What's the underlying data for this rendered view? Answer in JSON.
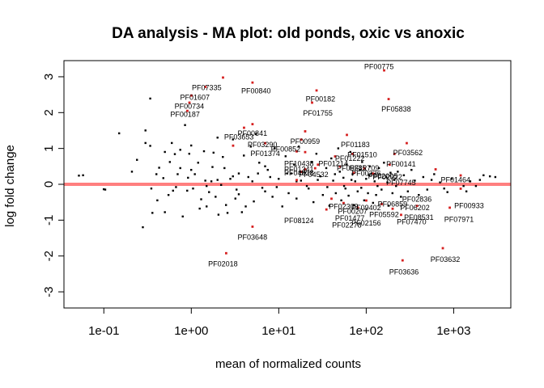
{
  "chart_data": {
    "type": "scatter",
    "title": "DA analysis - MA plot: old ponds, oxic vs anoxic",
    "xlabel": "mean of normalized counts",
    "ylabel": "log fold change",
    "x_scale": "log10",
    "xlim": [
      0.035,
      4500
    ],
    "ylim": [
      -3.45,
      3.45
    ],
    "x_ticks": [
      {
        "value": 0.1,
        "label": "1e-01"
      },
      {
        "value": 1,
        "label": "1e+00"
      },
      {
        "value": 10,
        "label": "1e+01"
      },
      {
        "value": 100,
        "label": "1e+02"
      },
      {
        "value": 1000,
        "label": "1e+03"
      }
    ],
    "y_ticks": [
      {
        "value": -3,
        "label": "-3"
      },
      {
        "value": -2,
        "label": "-2"
      },
      {
        "value": -1,
        "label": "-1"
      },
      {
        "value": 0,
        "label": "0"
      },
      {
        "value": 1,
        "label": "1"
      },
      {
        "value": 2,
        "label": "2"
      },
      {
        "value": 3,
        "label": "3"
      }
    ],
    "reference_line": {
      "y": 0,
      "color": "#ff7f7f"
    },
    "grid": false,
    "series": [
      {
        "color": "#000000",
        "points": [
          [
            0.052,
            0.24
          ],
          [
            0.058,
            0.25
          ],
          [
            0.1,
            -0.14
          ],
          [
            0.104,
            -0.15
          ],
          [
            0.15,
            1.42
          ],
          [
            0.21,
            0.35
          ],
          [
            0.24,
            0.68
          ],
          [
            0.28,
            -1.2
          ],
          [
            0.3,
            1.5
          ],
          [
            0.3,
            1.15
          ],
          [
            0.34,
            2.39
          ],
          [
            0.34,
            1.07
          ],
          [
            0.35,
            -0.12
          ],
          [
            0.36,
            -0.8
          ],
          [
            0.4,
            0.28
          ],
          [
            0.41,
            -0.45
          ],
          [
            0.43,
            0.46
          ],
          [
            0.48,
            0.17
          ],
          [
            0.5,
            -0.78
          ],
          [
            0.5,
            0.9
          ],
          [
            0.55,
            -0.3
          ],
          [
            0.57,
            0.62
          ],
          [
            0.6,
            1.15
          ],
          [
            0.62,
            -0.18
          ],
          [
            0.65,
            0.84
          ],
          [
            0.67,
            -0.08
          ],
          [
            0.7,
            0.28
          ],
          [
            0.75,
            0.45
          ],
          [
            0.75,
            0.96
          ],
          [
            0.8,
            -0.9
          ],
          [
            0.85,
            1.65
          ],
          [
            0.9,
            -0.18
          ],
          [
            0.92,
            0.18
          ],
          [
            0.95,
            0.85
          ],
          [
            1.0,
            1.08
          ],
          [
            1.05,
            -0.12
          ],
          [
            1.1,
            0.28
          ],
          [
            1.2,
            0.6
          ],
          [
            1.25,
            -0.68
          ],
          [
            1.3,
            -0.42
          ],
          [
            1.4,
            0.92
          ],
          [
            1.45,
            0.1
          ],
          [
            1.5,
            -0.62
          ],
          [
            1.6,
            -0.22
          ],
          [
            1.7,
            0.08
          ],
          [
            1.75,
            0.48
          ],
          [
            1.8,
            0.88
          ],
          [
            1.9,
            -0.35
          ],
          [
            2.0,
            1.3
          ],
          [
            2.05,
            -0.85
          ],
          [
            2.2,
            -0.02
          ],
          [
            2.3,
            0.76
          ],
          [
            2.4,
            0.45
          ],
          [
            2.5,
            -0.58
          ],
          [
            2.6,
            -0.8
          ],
          [
            2.8,
            0.15
          ],
          [
            3.0,
            0.22
          ],
          [
            3.0,
            1.25
          ],
          [
            3.2,
            -0.4
          ],
          [
            3.3,
            -0.15
          ],
          [
            3.5,
            0.3
          ],
          [
            3.8,
            -0.78
          ],
          [
            4.0,
            0.8
          ],
          [
            4.2,
            -0.62
          ],
          [
            4.5,
            0.2
          ],
          [
            4.8,
            1.05
          ],
          [
            5.2,
            -0.48
          ],
          [
            5.5,
            1.4
          ],
          [
            5.8,
            0.3
          ],
          [
            6.0,
            0.6
          ],
          [
            6.5,
            -0.1
          ],
          [
            7.0,
            -0.2
          ],
          [
            7.5,
            0.4
          ],
          [
            8.0,
            0.2
          ],
          [
            8.5,
            -0.35
          ],
          [
            9.0,
            1.0
          ],
          [
            10.0,
            0.15
          ],
          [
            11.0,
            -0.62
          ],
          [
            12.0,
            0.78
          ],
          [
            13.0,
            -0.25
          ],
          [
            14.0,
            0.3
          ],
          [
            15.0,
            0.55
          ],
          [
            16.0,
            -0.4
          ],
          [
            17.0,
            1.05
          ],
          [
            18.0,
            0.1
          ],
          [
            20.0,
            0.32
          ],
          [
            22.0,
            -0.12
          ],
          [
            24.0,
            0.62
          ],
          [
            25.0,
            -0.5
          ],
          [
            27.0,
            0.85
          ],
          [
            30.0,
            0.22
          ],
          [
            32.0,
            -0.3
          ],
          [
            35.0,
            0.45
          ],
          [
            38.0,
            -0.6
          ],
          [
            40.0,
            0.72
          ],
          [
            42.0,
            0.1
          ],
          [
            45.0,
            -0.25
          ],
          [
            48.0,
            1.0
          ],
          [
            50.0,
            0.35
          ],
          [
            52.0,
            -0.45
          ],
          [
            55.0,
            0.18
          ],
          [
            58.0,
            -0.12
          ],
          [
            60.0,
            0.55
          ],
          [
            63.0,
            -0.32
          ],
          [
            66.0,
            0.9
          ],
          [
            70.0,
            0.28
          ],
          [
            72.0,
            -0.58
          ],
          [
            75.0,
            0.08
          ],
          [
            80.0,
            -0.2
          ],
          [
            85.0,
            0.4
          ],
          [
            90.0,
            0.62
          ],
          [
            95.0,
            -0.45
          ],
          [
            100.0,
            0.15
          ],
          [
            105.0,
            -0.25
          ],
          [
            110.0,
            0.5
          ],
          [
            115.0,
            0.3
          ],
          [
            120.0,
            -0.52
          ],
          [
            125.0,
            0.08
          ],
          [
            130.0,
            -0.3
          ],
          [
            140.0,
            0.45
          ],
          [
            150.0,
            -0.15
          ],
          [
            160.0,
            0.6
          ],
          [
            170.0,
            0.2
          ],
          [
            180.0,
            -0.6
          ],
          [
            190.0,
            0.32
          ],
          [
            200.0,
            -0.25
          ],
          [
            210.0,
            0.12
          ],
          [
            230.0,
            0.35
          ],
          [
            250.0,
            -0.35
          ],
          [
            270.0,
            0.25
          ],
          [
            300.0,
            -0.2
          ],
          [
            330.0,
            0.4
          ],
          [
            360.0,
            0.1
          ],
          [
            400.0,
            -0.3
          ],
          [
            450.0,
            0.2
          ],
          [
            500.0,
            -0.15
          ],
          [
            560.0,
            0.12
          ],
          [
            600.0,
            0.28
          ],
          [
            700.0,
            0.05
          ],
          [
            780.0,
            -0.12
          ],
          [
            850.0,
            -0.22
          ],
          [
            950.0,
            0.15
          ],
          [
            1300.0,
            -0.05
          ],
          [
            1400.0,
            -0.2
          ],
          [
            1550.0,
            0.08
          ],
          [
            1800.0,
            -0.05
          ],
          [
            2000.0,
            0.12
          ],
          [
            2200.0,
            0.25
          ],
          [
            2600.0,
            0.22
          ],
          [
            3000.0,
            0.2
          ],
          [
            1.0,
            0.4
          ],
          [
            1.5,
            -0.05
          ],
          [
            2.0,
            0.12
          ],
          [
            3.5,
            -0.28
          ],
          [
            5.0,
            0.08
          ],
          [
            7.0,
            0.5
          ],
          [
            9.5,
            -0.08
          ],
          [
            12.5,
            0.3
          ],
          [
            16.0,
            0.08
          ],
          [
            21.0,
            -0.05
          ],
          [
            28.0,
            0.12
          ],
          [
            36.0,
            -0.08
          ],
          [
            44.0,
            0.28
          ],
          [
            56.0,
            -0.05
          ],
          [
            68.0,
            0.12
          ],
          [
            88.0,
            -0.1
          ],
          [
            108.0,
            0.25
          ],
          [
            135.0,
            -0.05
          ],
          [
            175.0,
            0.05
          ],
          [
            220.0,
            -0.05
          ]
        ]
      },
      {
        "color": "#d62020",
        "points": [
          [
            1.45,
            2.72
          ],
          [
            2.3,
            2.98
          ],
          [
            5.0,
            2.84
          ],
          [
            1.0,
            2.48
          ],
          [
            0.95,
            2.28
          ],
          [
            0.9,
            2.05
          ],
          [
            27.0,
            2.62
          ],
          [
            24.0,
            2.28
          ],
          [
            160.0,
            3.18
          ],
          [
            180.0,
            2.38
          ],
          [
            20.0,
            1.48
          ],
          [
            18.0,
            1.25
          ],
          [
            7.0,
            1.15
          ],
          [
            4.0,
            1.58
          ],
          [
            5.0,
            1.68
          ],
          [
            3.0,
            1.08
          ],
          [
            16.0,
            0.92
          ],
          [
            20.0,
            0.9
          ],
          [
            60.0,
            1.38
          ],
          [
            70.0,
            0.85
          ],
          [
            210.0,
            0.85
          ],
          [
            290.0,
            1.15
          ],
          [
            44.0,
            0.78
          ],
          [
            28.0,
            0.55
          ],
          [
            20.0,
            0.42
          ],
          [
            16.0,
            0.12
          ],
          [
            18.0,
            0.35
          ],
          [
            26.0,
            0.45
          ],
          [
            50.0,
            0.5
          ],
          [
            72.0,
            0.32
          ],
          [
            95.0,
            0.45
          ],
          [
            120.0,
            0.3
          ],
          [
            185.0,
            0.55
          ],
          [
            620.0,
            0.42
          ],
          [
            1200.0,
            0.25
          ],
          [
            1200.0,
            -0.12
          ],
          [
            40.0,
            -0.4
          ],
          [
            55.0,
            -0.52
          ],
          [
            80.0,
            -0.65
          ],
          [
            100.0,
            -0.45
          ],
          [
            150.0,
            -0.55
          ],
          [
            200.0,
            -0.68
          ],
          [
            250.0,
            -0.85
          ],
          [
            380.0,
            -0.6
          ],
          [
            900.0,
            -0.65
          ],
          [
            35.0,
            -0.7
          ],
          [
            5.0,
            -1.18
          ],
          [
            2.5,
            -1.92
          ],
          [
            260.0,
            -2.12
          ],
          [
            750.0,
            -1.78
          ]
        ]
      }
    ],
    "labels": [
      {
        "x": 140.0,
        "y": 3.28,
        "text": "PF00775"
      },
      {
        "x": 1.5,
        "y": 2.7,
        "text": "PF07335"
      },
      {
        "x": 5.5,
        "y": 2.6,
        "text": "PF00840"
      },
      {
        "x": 1.1,
        "y": 2.42,
        "text": "PF01607"
      },
      {
        "x": 0.95,
        "y": 2.18,
        "text": "PF00734"
      },
      {
        "x": 30.0,
        "y": 2.38,
        "text": "PF00182"
      },
      {
        "x": 220.0,
        "y": 2.1,
        "text": "PF05838"
      },
      {
        "x": 0.85,
        "y": 1.95,
        "text": "PF00187"
      },
      {
        "x": 28.0,
        "y": 1.98,
        "text": "PF01755"
      },
      {
        "x": 5.0,
        "y": 1.42,
        "text": "PF00841"
      },
      {
        "x": 3.5,
        "y": 1.32,
        "text": "PF03653"
      },
      {
        "x": 75.0,
        "y": 1.1,
        "text": "PF01183"
      },
      {
        "x": 20.0,
        "y": 1.2,
        "text": "PF00959"
      },
      {
        "x": 6.5,
        "y": 1.1,
        "text": "PF03290"
      },
      {
        "x": 12.0,
        "y": 0.98,
        "text": "PF00852"
      },
      {
        "x": 90.0,
        "y": 0.82,
        "text": "PF01510"
      },
      {
        "x": 300.0,
        "y": 0.88,
        "text": "PF03562"
      },
      {
        "x": 7.0,
        "y": 0.86,
        "text": "PF01374"
      },
      {
        "x": 65.0,
        "y": 0.72,
        "text": "PF01222"
      },
      {
        "x": 17.0,
        "y": 0.58,
        "text": "PF10438"
      },
      {
        "x": 42.0,
        "y": 0.58,
        "text": "PF01214"
      },
      {
        "x": 250.0,
        "y": 0.56,
        "text": "PF00141"
      },
      {
        "x": 17.0,
        "y": 0.42,
        "text": "PF01341"
      },
      {
        "x": 68.0,
        "y": 0.45,
        "text": "PF05385"
      },
      {
        "x": 95.0,
        "y": 0.45,
        "text": "PF12709"
      },
      {
        "x": 17.0,
        "y": 0.32,
        "text": "PF04828"
      },
      {
        "x": 25.0,
        "y": 0.27,
        "text": "PF04532"
      },
      {
        "x": 100.0,
        "y": 0.3,
        "text": "PF00236"
      },
      {
        "x": 155.0,
        "y": 0.22,
        "text": "PF02005"
      },
      {
        "x": 175.0,
        "y": 0.2,
        "text": "PF02922"
      },
      {
        "x": 250.0,
        "y": 0.05,
        "text": "PF07745"
      },
      {
        "x": 1050.0,
        "y": 0.12,
        "text": "PF01464"
      },
      {
        "x": 380.0,
        "y": -0.42,
        "text": "PF02836"
      },
      {
        "x": 200.0,
        "y": -0.55,
        "text": "PF06859"
      },
      {
        "x": 360.0,
        "y": -0.65,
        "text": "PF06202"
      },
      {
        "x": 1500.0,
        "y": -0.6,
        "text": "PF00933"
      },
      {
        "x": 55.0,
        "y": -0.62,
        "text": "PF02309"
      },
      {
        "x": 100.0,
        "y": -0.65,
        "text": "PF09402"
      },
      {
        "x": 70.0,
        "y": -0.75,
        "text": "PF00207"
      },
      {
        "x": 160.0,
        "y": -0.85,
        "text": "PF05592"
      },
      {
        "x": 400.0,
        "y": -0.92,
        "text": "PF08531"
      },
      {
        "x": 65.0,
        "y": -0.95,
        "text": "PF01477"
      },
      {
        "x": 1150.0,
        "y": -0.98,
        "text": "PF07971"
      },
      {
        "x": 17.0,
        "y": -1.02,
        "text": "PF08124"
      },
      {
        "x": 330.0,
        "y": -1.05,
        "text": "PF07470"
      },
      {
        "x": 100.0,
        "y": -1.08,
        "text": "PF02156"
      },
      {
        "x": 60.0,
        "y": -1.14,
        "text": "PF02278"
      },
      {
        "x": 5.0,
        "y": -1.48,
        "text": "PF03648"
      },
      {
        "x": 800.0,
        "y": -2.1,
        "text": "PF03632"
      },
      {
        "x": 2.3,
        "y": -2.22,
        "text": "PF02018"
      },
      {
        "x": 270.0,
        "y": -2.45,
        "text": "PF03636"
      }
    ]
  }
}
